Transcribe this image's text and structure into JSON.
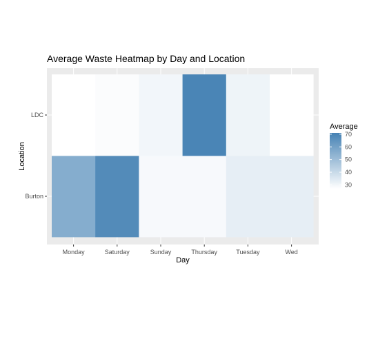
{
  "chart_data": {
    "type": "heatmap",
    "title": "Average Waste Heatmap by Day and Location",
    "xlabel": "Day",
    "ylabel": "Location",
    "x_categories": [
      "Monday",
      "Saturday",
      "Sunday",
      "Thursday",
      "Tuesday",
      "Wed"
    ],
    "y_categories": [
      "Burton",
      "LDC"
    ],
    "cells": [
      {
        "x": "Monday",
        "y": "Burton",
        "value": 56
      },
      {
        "x": "Saturday",
        "y": "Burton",
        "value": 68
      },
      {
        "x": "Sunday",
        "y": "Burton",
        "value": 29
      },
      {
        "x": "Thursday",
        "y": "Burton",
        "value": 29
      },
      {
        "x": "Tuesday",
        "y": "Burton",
        "value": 33
      },
      {
        "x": "Wed",
        "y": "Burton",
        "value": 33
      },
      {
        "x": "Monday",
        "y": "LDC",
        "value": 27
      },
      {
        "x": "Saturday",
        "y": "LDC",
        "value": 28
      },
      {
        "x": "Sunday",
        "y": "LDC",
        "value": 30
      },
      {
        "x": "Thursday",
        "y": "LDC",
        "value": 70
      },
      {
        "x": "Tuesday",
        "y": "LDC",
        "value": 31
      },
      {
        "x": "Wed",
        "y": "LDC",
        "value": 27
      }
    ],
    "legend": {
      "title": "Average",
      "ticks": [
        30,
        40,
        50,
        60,
        70
      ],
      "min": 27,
      "max": 71,
      "low_color": "#ffffff",
      "high_color": "#4682b4",
      "placement": "right"
    },
    "panel_background": "#ebebeb",
    "grid": true
  }
}
